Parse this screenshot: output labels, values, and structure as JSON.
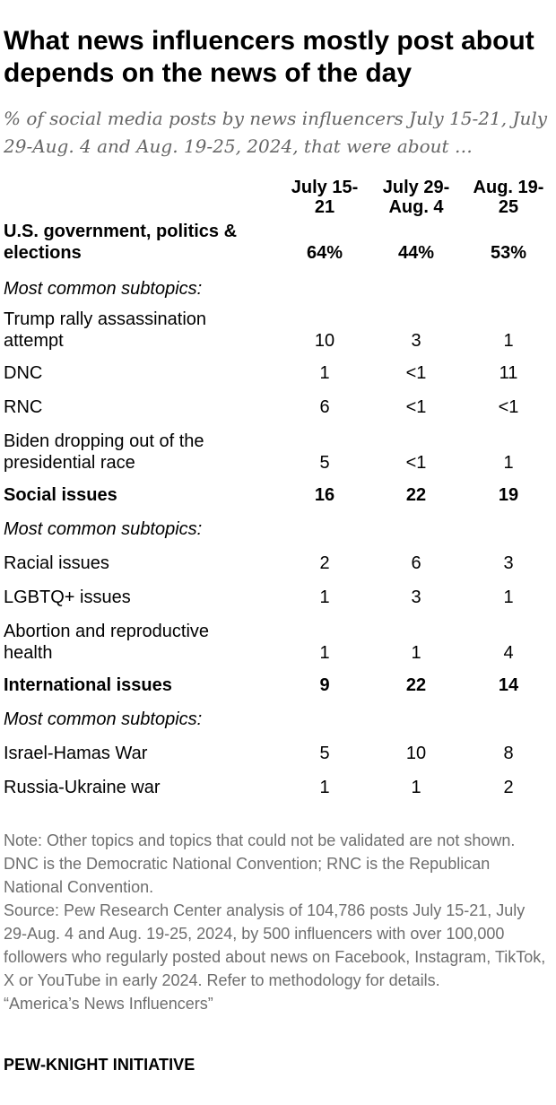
{
  "title": "What news influencers mostly post about depends on the news of the day",
  "subtitle": "% of social media posts by news influencers July 15-21, July 29-Aug. 4 and Aug. 19-25, 2024, that were about …",
  "chart_data": {
    "type": "table",
    "columns": [
      {
        "line1": "July 15-",
        "line2": "21"
      },
      {
        "line1": "July 29-",
        "line2": "Aug. 4"
      },
      {
        "line1": "Aug. 19-",
        "line2": "25"
      }
    ],
    "rows": [
      {
        "kind": "main",
        "label_lines": [
          "U.S. government, politics &",
          "elections"
        ],
        "values": [
          "64%",
          "44%",
          "53%"
        ]
      },
      {
        "kind": "sub-header",
        "label_lines": [
          "Most common subtopics:"
        ],
        "values": []
      },
      {
        "kind": "sub",
        "label_lines": [
          "Trump rally assassination",
          "attempt"
        ],
        "values": [
          "10",
          "3",
          "1"
        ]
      },
      {
        "kind": "sub",
        "label_lines": [
          "DNC"
        ],
        "values": [
          "1",
          "<1",
          "11"
        ]
      },
      {
        "kind": "sub",
        "label_lines": [
          "RNC"
        ],
        "values": [
          "6",
          "<1",
          "<1"
        ]
      },
      {
        "kind": "sub",
        "label_lines": [
          "Biden dropping out of the",
          "presidential race"
        ],
        "values": [
          "5",
          "<1",
          "1"
        ]
      },
      {
        "kind": "main",
        "label_lines": [
          "Social issues"
        ],
        "values": [
          "16",
          "22",
          "19"
        ]
      },
      {
        "kind": "sub-header",
        "label_lines": [
          "Most common subtopics:"
        ],
        "values": []
      },
      {
        "kind": "sub",
        "label_lines": [
          "Racial issues"
        ],
        "values": [
          "2",
          "6",
          "3"
        ]
      },
      {
        "kind": "sub",
        "label_lines": [
          "LGBTQ+ issues"
        ],
        "values": [
          "1",
          "3",
          "1"
        ]
      },
      {
        "kind": "sub",
        "label_lines": [
          "Abortion and reproductive",
          "health"
        ],
        "values": [
          "1",
          "1",
          "4"
        ]
      },
      {
        "kind": "main",
        "label_lines": [
          "International issues"
        ],
        "values": [
          "9",
          "22",
          "14"
        ]
      },
      {
        "kind": "sub-header",
        "label_lines": [
          "Most common subtopics:"
        ],
        "values": []
      },
      {
        "kind": "sub",
        "label_lines": [
          "Israel-Hamas War"
        ],
        "values": [
          "5",
          "10",
          "8"
        ]
      },
      {
        "kind": "sub",
        "label_lines": [
          "Russia-Ukraine war"
        ],
        "values": [
          "1",
          "1",
          "2"
        ]
      }
    ]
  },
  "note": {
    "line1": "Note: Other topics and topics that could not be validated are not shown. DNC is the Democratic National Convention; RNC is the Republican National Convention.",
    "line2": "Source: Pew Research Center analysis of 104,786 posts July 15-21, July 29-Aug. 4 and Aug. 19-25, 2024, by 500 influencers with over 100,000 followers who regularly posted about news on Facebook, Instagram, TikTok, X or YouTube in early 2024. Refer to methodology for details.",
    "line3": "“America’s News Influencers”"
  },
  "brand": "PEW-KNIGHT INITIATIVE"
}
